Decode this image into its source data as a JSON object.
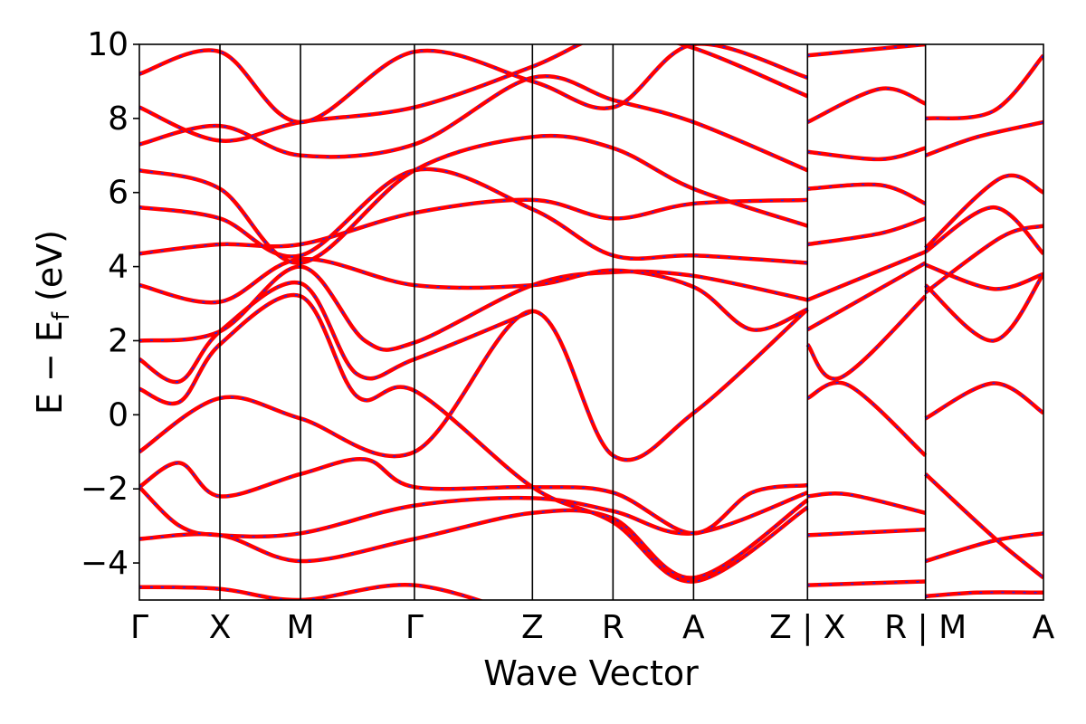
{
  "chart_data": {
    "type": "line",
    "xlabel": "Wave Vector",
    "ylabel_parts": [
      "E − E",
      "f",
      " (eV)"
    ],
    "ylim": [
      -5,
      10
    ],
    "yticks": [
      -4,
      -2,
      0,
      2,
      4,
      6,
      8,
      10
    ],
    "ytick_labels": [
      "−4",
      "−2",
      "0",
      "2",
      "4",
      "6",
      "8",
      "10"
    ],
    "kpath": [
      {
        "label": "Γ",
        "position": 0
      },
      {
        "label": "X",
        "position": 0.5
      },
      {
        "label": "M",
        "position": 1.0
      },
      {
        "label": "Γ",
        "position": 1.7071
      },
      {
        "label": "Z",
        "position": 2.4393
      },
      {
        "label": "R",
        "position": 2.9393
      },
      {
        "label": "A",
        "position": 3.4393
      },
      {
        "label": "Z | X",
        "position": 4.1464
      },
      {
        "label": "R | M",
        "position": 4.8786
      },
      {
        "label": "A",
        "position": 5.6107
      }
    ],
    "series_styles": [
      {
        "role": "solid",
        "color": "#ff0000"
      },
      {
        "role": "dashed",
        "color": "#2222ee"
      }
    ],
    "bands": [
      {
        "name": "b1",
        "points": [
          [
            0,
            -4.65
          ],
          [
            0.5,
            -4.7
          ],
          [
            1.0,
            -5.0
          ],
          [
            1.7071,
            -4.6
          ],
          [
            2.4393,
            -5.5
          ]
        ]
      },
      {
        "name": "b2",
        "points": [
          [
            0,
            -3.35
          ],
          [
            0.5,
            -3.25
          ],
          [
            1.0,
            -3.95
          ],
          [
            1.7071,
            -3.35
          ],
          [
            2.4393,
            -2.65
          ],
          [
            2.9393,
            -2.8
          ],
          [
            3.4393,
            -4.4
          ],
          [
            4.1464,
            -2.3
          ]
        ]
      },
      {
        "name": "b3",
        "points": [
          [
            0,
            -1.95
          ],
          [
            0.25,
            -3.0
          ],
          [
            0.5,
            -3.25
          ],
          [
            1.0,
            -3.2
          ],
          [
            1.7071,
            -2.45
          ],
          [
            2.4393,
            -2.25
          ],
          [
            2.9393,
            -2.6
          ],
          [
            3.4393,
            -3.2
          ],
          [
            4.1464,
            -2.1
          ]
        ]
      },
      {
        "name": "b4",
        "points": [
          [
            0,
            -1.95
          ],
          [
            0.25,
            -1.3
          ],
          [
            0.5,
            -2.2
          ],
          [
            1.0,
            -1.6
          ],
          [
            1.4,
            -1.2
          ],
          [
            1.7071,
            -1.95
          ],
          [
            2.4393,
            -1.95
          ],
          [
            2.9393,
            -2.1
          ],
          [
            3.4393,
            -3.2
          ],
          [
            3.8,
            -2.1
          ],
          [
            4.1464,
            -1.9
          ]
        ]
      },
      {
        "name": "b5",
        "points": [
          [
            0,
            -1.0
          ],
          [
            0.5,
            0.45
          ],
          [
            1.0,
            -0.1
          ],
          [
            1.7071,
            -1.0
          ],
          [
            2.4393,
            2.8
          ],
          [
            2.9393,
            -1.1
          ],
          [
            3.4393,
            0.05
          ],
          [
            4.1464,
            2.85
          ]
        ]
      },
      {
        "name": "b6",
        "points": [
          [
            0,
            0.7
          ],
          [
            0.25,
            0.35
          ],
          [
            0.5,
            1.9
          ],
          [
            1.0,
            3.2
          ],
          [
            1.35,
            0.5
          ],
          [
            1.7071,
            0.65
          ],
          [
            2.4393,
            -1.95
          ],
          [
            2.9393,
            -2.9
          ],
          [
            3.4393,
            -4.5
          ],
          [
            4.1464,
            -2.5
          ]
        ]
      },
      {
        "name": "b7",
        "points": [
          [
            0,
            1.5
          ],
          [
            0.25,
            0.9
          ],
          [
            0.5,
            2.25
          ],
          [
            1.0,
            3.55
          ],
          [
            1.35,
            1.1
          ],
          [
            1.7071,
            1.5
          ],
          [
            2.4393,
            2.8
          ]
        ]
      },
      {
        "name": "b8",
        "points": [
          [
            0,
            2.0
          ],
          [
            0.5,
            2.25
          ],
          [
            1.0,
            4.0
          ],
          [
            1.4,
            2.0
          ],
          [
            1.7071,
            1.95
          ],
          [
            2.4393,
            3.5
          ],
          [
            2.9393,
            3.85
          ],
          [
            3.4393,
            3.75
          ],
          [
            4.1464,
            3.1
          ]
        ]
      },
      {
        "name": "b9",
        "points": [
          [
            0,
            3.5
          ],
          [
            0.5,
            3.05
          ],
          [
            1.0,
            4.2
          ],
          [
            1.7071,
            3.5
          ],
          [
            2.4393,
            3.5
          ],
          [
            2.9393,
            3.9
          ],
          [
            3.4393,
            3.45
          ],
          [
            3.8,
            2.3
          ],
          [
            4.1464,
            2.85
          ]
        ]
      },
      {
        "name": "b10",
        "points": [
          [
            0,
            4.35
          ],
          [
            0.5,
            4.6
          ],
          [
            1.0,
            4.6
          ],
          [
            1.7071,
            5.45
          ],
          [
            2.4393,
            5.8
          ],
          [
            2.9393,
            5.3
          ],
          [
            3.4393,
            5.7
          ],
          [
            4.1464,
            5.8
          ]
        ]
      },
      {
        "name": "b11",
        "points": [
          [
            0,
            5.6
          ],
          [
            0.5,
            5.3
          ],
          [
            1.0,
            4.3
          ],
          [
            1.7071,
            6.6
          ],
          [
            2.4393,
            5.55
          ],
          [
            2.9393,
            4.3
          ],
          [
            3.4393,
            4.3
          ],
          [
            4.1464,
            4.1
          ]
        ]
      },
      {
        "name": "b12",
        "points": [
          [
            0,
            6.6
          ],
          [
            0.5,
            6.1
          ],
          [
            1.0,
            4.1
          ],
          [
            1.7071,
            6.6
          ],
          [
            2.4393,
            7.5
          ],
          [
            2.9393,
            7.2
          ],
          [
            3.4393,
            6.1
          ],
          [
            4.1464,
            5.1
          ]
        ]
      },
      {
        "name": "b13",
        "points": [
          [
            0,
            7.3
          ],
          [
            0.5,
            7.8
          ],
          [
            1.0,
            7.0
          ],
          [
            1.7071,
            7.3
          ],
          [
            2.4393,
            9.1
          ],
          [
            2.9393,
            8.5
          ],
          [
            3.4393,
            7.9
          ],
          [
            4.1464,
            6.6
          ]
        ]
      },
      {
        "name": "b14",
        "points": [
          [
            0,
            8.3
          ],
          [
            0.5,
            7.4
          ],
          [
            1.0,
            7.9
          ],
          [
            1.7071,
            8.3
          ],
          [
            2.4393,
            9.4
          ],
          [
            2.9393,
            10.3
          ],
          [
            3.4393,
            9.9
          ],
          [
            4.1464,
            8.6
          ]
        ]
      },
      {
        "name": "b15",
        "points": [
          [
            0,
            9.2
          ],
          [
            0.5,
            9.8
          ],
          [
            1.0,
            7.9
          ],
          [
            1.7071,
            9.8
          ],
          [
            2.4393,
            9.0
          ],
          [
            2.9393,
            8.3
          ],
          [
            3.4393,
            10.0
          ],
          [
            4.1464,
            9.1
          ]
        ]
      },
      {
        "name": "b16",
        "points": [
          [
            4.1464,
            -4.6
          ],
          [
            4.8786,
            -4.5
          ]
        ]
      },
      {
        "name": "b17",
        "points": [
          [
            4.1464,
            -3.25
          ],
          [
            4.8786,
            -3.1
          ]
        ]
      },
      {
        "name": "b18",
        "points": [
          [
            4.1464,
            -2.2
          ],
          [
            4.4,
            -2.15
          ],
          [
            4.8786,
            -2.65
          ]
        ]
      },
      {
        "name": "b19",
        "points": [
          [
            4.1464,
            0.45
          ],
          [
            4.4,
            0.8
          ],
          [
            4.8786,
            -1.1
          ]
        ]
      },
      {
        "name": "b20",
        "points": [
          [
            4.1464,
            1.9
          ],
          [
            4.35,
            1.0
          ],
          [
            4.8786,
            3.2
          ]
        ]
      },
      {
        "name": "b21",
        "points": [
          [
            4.1464,
            2.3
          ],
          [
            4.8786,
            4.1
          ]
        ]
      },
      {
        "name": "b22",
        "points": [
          [
            4.1464,
            3.1
          ],
          [
            4.8786,
            4.4
          ]
        ]
      },
      {
        "name": "b23",
        "points": [
          [
            4.1464,
            4.6
          ],
          [
            4.6,
            4.9
          ],
          [
            4.8786,
            5.3
          ]
        ]
      },
      {
        "name": "b24",
        "points": [
          [
            4.1464,
            6.1
          ],
          [
            4.6,
            6.2
          ],
          [
            4.8786,
            5.7
          ]
        ]
      },
      {
        "name": "b25",
        "points": [
          [
            4.1464,
            7.1
          ],
          [
            4.6,
            6.9
          ],
          [
            4.8786,
            7.2
          ]
        ]
      },
      {
        "name": "b26",
        "points": [
          [
            4.1464,
            7.9
          ],
          [
            4.6,
            8.8
          ],
          [
            4.8786,
            8.4
          ]
        ]
      },
      {
        "name": "b27",
        "points": [
          [
            4.1464,
            9.7
          ],
          [
            4.8786,
            10.0
          ]
        ]
      },
      {
        "name": "b28",
        "points": [
          [
            4.8786,
            -4.9
          ],
          [
            5.2,
            -4.8
          ],
          [
            5.6107,
            -4.8
          ]
        ]
      },
      {
        "name": "b29",
        "points": [
          [
            4.8786,
            -3.95
          ],
          [
            5.3,
            -3.4
          ],
          [
            5.6107,
            -3.2
          ]
        ]
      },
      {
        "name": "b30",
        "points": [
          [
            4.8786,
            -1.6
          ],
          [
            5.3,
            -3.3
          ],
          [
            5.6107,
            -4.4
          ]
        ]
      },
      {
        "name": "b31",
        "points": [
          [
            4.8786,
            -0.1
          ],
          [
            5.3,
            0.85
          ],
          [
            5.6107,
            0.05
          ]
        ]
      },
      {
        "name": "b32",
        "points": [
          [
            4.8786,
            3.5
          ],
          [
            5.3,
            2.0
          ],
          [
            5.6107,
            3.8
          ]
        ]
      },
      {
        "name": "b33",
        "points": [
          [
            4.8786,
            3.3
          ],
          [
            5.35,
            4.8
          ],
          [
            5.6107,
            5.1
          ]
        ]
      },
      {
        "name": "b34",
        "points": [
          [
            4.8786,
            4.05
          ],
          [
            5.3,
            3.4
          ],
          [
            5.6107,
            3.8
          ]
        ]
      },
      {
        "name": "b35",
        "points": [
          [
            4.8786,
            4.5
          ],
          [
            5.35,
            6.4
          ],
          [
            5.6107,
            6.0
          ]
        ]
      },
      {
        "name": "b36",
        "points": [
          [
            4.8786,
            4.4
          ],
          [
            5.3,
            5.6
          ],
          [
            5.6107,
            4.35
          ]
        ]
      },
      {
        "name": "b37",
        "points": [
          [
            4.8786,
            7.0
          ],
          [
            5.2,
            7.5
          ],
          [
            5.6107,
            7.9
          ]
        ]
      },
      {
        "name": "b38",
        "points": [
          [
            4.8786,
            8.0
          ],
          [
            5.3,
            8.2
          ],
          [
            5.6107,
            9.7
          ]
        ]
      }
    ]
  }
}
